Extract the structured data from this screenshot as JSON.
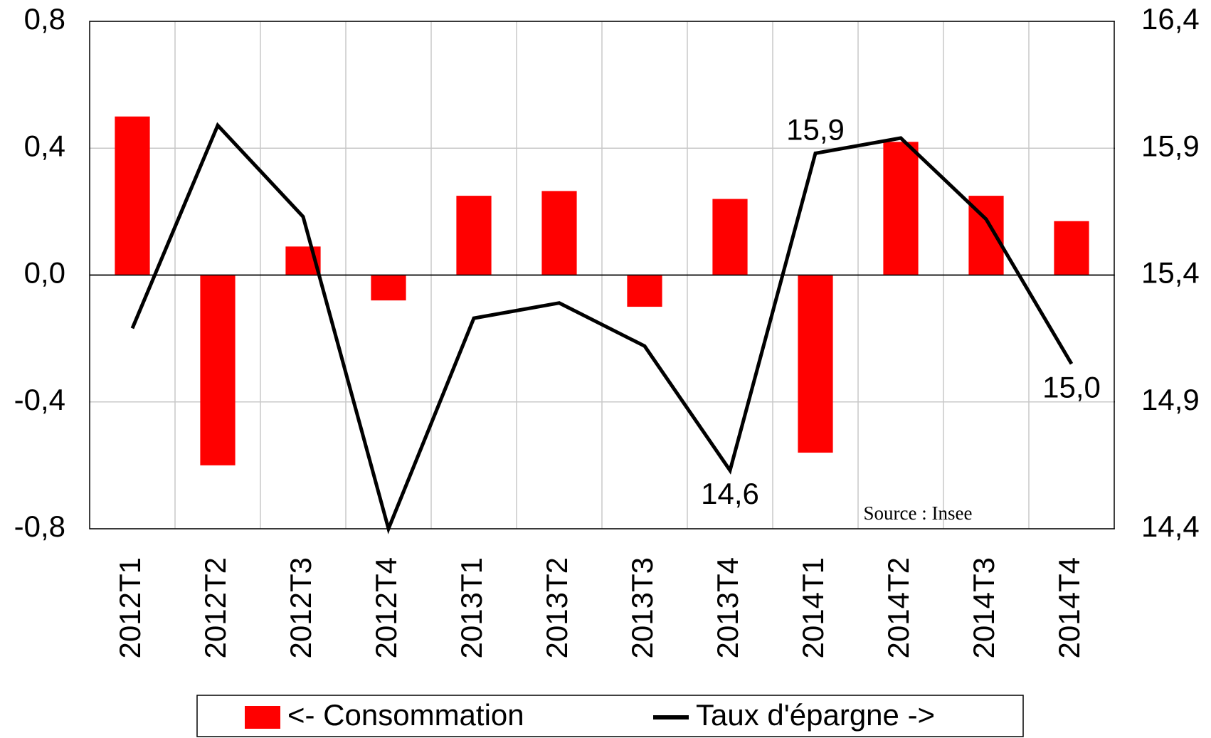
{
  "chart_data": {
    "type": "bar_line",
    "categories": [
      "2012T1",
      "2012T2",
      "2012T3",
      "2012T4",
      "2013T1",
      "2013T2",
      "2013T3",
      "2013T4",
      "2014T1",
      "2014T2",
      "2014T3",
      "2014T4"
    ],
    "series": [
      {
        "name": "<- Consommation",
        "type": "bar",
        "color": "#ff0000",
        "values": [
          0.5,
          -0.6,
          0.09,
          -0.08,
          0.25,
          0.265,
          -0.1,
          0.24,
          -0.56,
          0.42,
          0.25,
          0.17
        ]
      },
      {
        "name": "Taux d'épargne ->",
        "type": "line",
        "axis": "y2",
        "color": "#000000",
        "values": [
          15.19,
          15.99,
          15.63,
          14.4,
          15.23,
          15.29,
          15.12,
          14.63,
          15.88,
          15.94,
          15.62,
          15.05
        ],
        "value_labels": [
          null,
          null,
          null,
          null,
          null,
          null,
          null,
          "14,6",
          "15,9",
          null,
          null,
          "15,0"
        ]
      }
    ],
    "ylim": [
      -0.8,
      0.8
    ],
    "yticks": [
      {
        "value": -0.8,
        "label": "-0,8"
      },
      {
        "value": -0.4,
        "label": "-0,4"
      },
      {
        "value": 0,
        "label": "0,0"
      },
      {
        "value": 0.4,
        "label": "0,4"
      },
      {
        "value": 0.8,
        "label": "0,8"
      }
    ],
    "y2lim": [
      14.4,
      16.4
    ],
    "y2ticks": [
      {
        "value": 14.4,
        "label": "14,4"
      },
      {
        "value": 14.9,
        "label": "14,9"
      },
      {
        "value": 15.4,
        "label": "15,4"
      },
      {
        "value": 15.9,
        "label": "15,9"
      },
      {
        "value": 16.4,
        "label": "16,4"
      }
    ],
    "annotation": "Source : Insee",
    "grid": true,
    "legend": "bottom"
  }
}
